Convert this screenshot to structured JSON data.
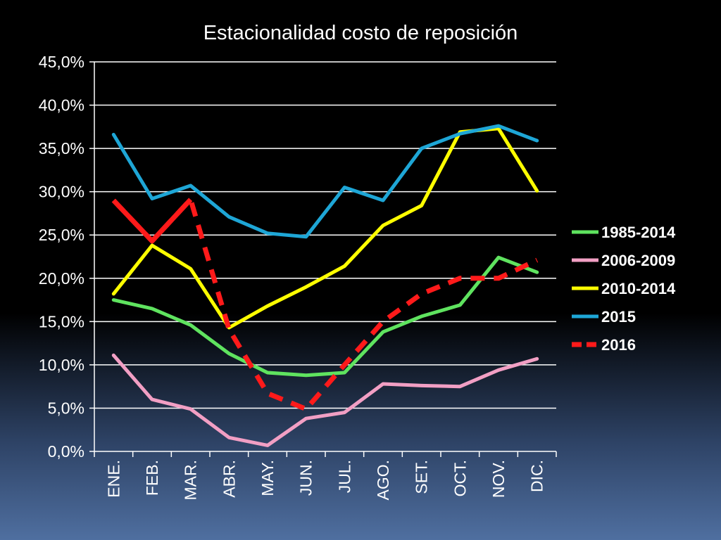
{
  "chart_data": {
    "type": "line",
    "title": "Estacionalidad costo de reposición",
    "xlabel": "",
    "ylabel": "",
    "categories": [
      "ENE.",
      "FEB.",
      "MAR.",
      "ABR.",
      "MAY.",
      "JUN.",
      "JUL.",
      "AGO.",
      "SET.",
      "OCT.",
      "NOV.",
      "DIC."
    ],
    "ylim": [
      0,
      45
    ],
    "yticks": [
      0,
      5,
      10,
      15,
      20,
      25,
      30,
      35,
      40,
      45
    ],
    "ytick_labels": [
      "0,0%",
      "5,0%",
      "10,0%",
      "15,0%",
      "20,0%",
      "25,0%",
      "30,0%",
      "35,0%",
      "40,0%",
      "45,0%"
    ],
    "grid": true,
    "legend_position": "right",
    "series": [
      {
        "name": "1985-2014",
        "color": "#5fe35f",
        "dashed": false,
        "values": [
          17.5,
          16.5,
          14.6,
          11.3,
          9.1,
          8.8,
          9.1,
          13.8,
          15.6,
          16.9,
          22.4,
          20.7
        ]
      },
      {
        "name": "2006-2009",
        "color": "#f29fc4",
        "dashed": false,
        "values": [
          11.1,
          6.0,
          4.9,
          1.6,
          0.7,
          3.8,
          4.5,
          7.8,
          7.6,
          7.5,
          9.4,
          10.7
        ]
      },
      {
        "name": "2010-2014",
        "color": "#ffff00",
        "dashed": false,
        "values": [
          18.2,
          23.8,
          21.1,
          14.3,
          16.8,
          19.0,
          21.4,
          26.1,
          28.4,
          36.9,
          37.3,
          30.1
        ]
      },
      {
        "name": "2015",
        "color": "#1ea6d6",
        "dashed": false,
        "values": [
          36.6,
          29.2,
          30.7,
          27.1,
          25.2,
          24.8,
          30.5,
          29.0,
          35.0,
          36.7,
          37.6,
          35.9
        ]
      },
      {
        "name": "2016",
        "color": "#ff1a1a",
        "dashed": true,
        "values": [
          29.0,
          24.3,
          29.1,
          14.1,
          6.7,
          4.9,
          10.0,
          15.0,
          18.2,
          20.0,
          20.0,
          22.1
        ]
      }
    ]
  }
}
